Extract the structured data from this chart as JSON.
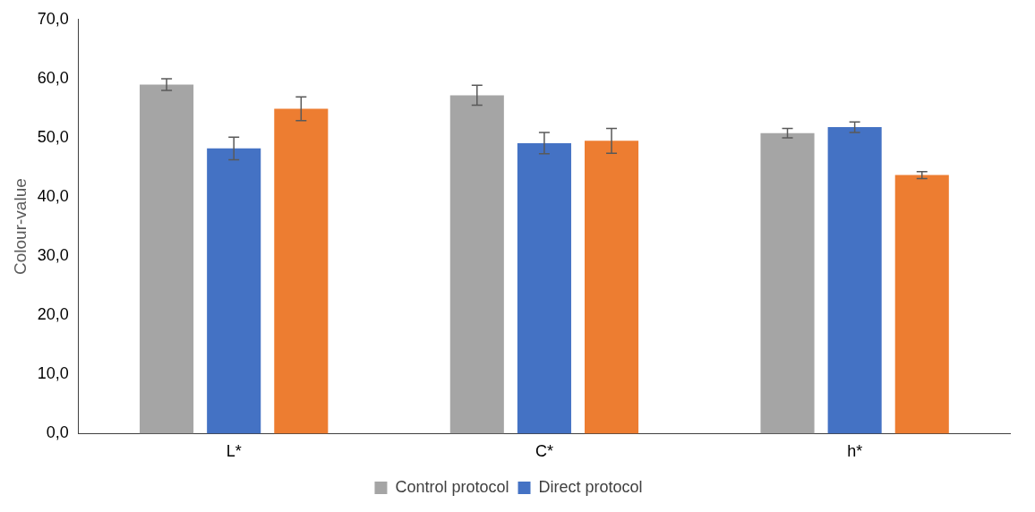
{
  "chart_data": {
    "type": "bar",
    "ylabel": "Colour-value",
    "categories": [
      "L*",
      "C*",
      "h*"
    ],
    "series": [
      {
        "name": "Control protocol",
        "color": "#a5a5a5",
        "values": [
          59.0,
          57.2,
          50.8
        ],
        "errors": [
          1.0,
          1.7,
          0.8
        ]
      },
      {
        "name": "Direct protocol",
        "color": "#4472c4",
        "values": [
          48.2,
          49.1,
          51.8
        ],
        "errors": [
          1.9,
          1.8,
          0.9
        ]
      },
      {
        "color": "#ed7d31",
        "values": [
          54.9,
          49.5,
          43.7
        ],
        "errors": [
          2.0,
          2.1,
          0.6
        ]
      }
    ],
    "ylim": [
      0,
      70
    ],
    "yticks": [
      {
        "value": 0,
        "label": "0,0"
      },
      {
        "value": 10,
        "label": "10,0"
      },
      {
        "value": 20,
        "label": "20,0"
      },
      {
        "value": 30,
        "label": "30,0"
      },
      {
        "value": 40,
        "label": "40,0"
      },
      {
        "value": 50,
        "label": "50,0"
      },
      {
        "value": 60,
        "label": "60,0"
      },
      {
        "value": 70,
        "label": "70,0"
      }
    ],
    "grid": false,
    "legend": "bottom"
  }
}
